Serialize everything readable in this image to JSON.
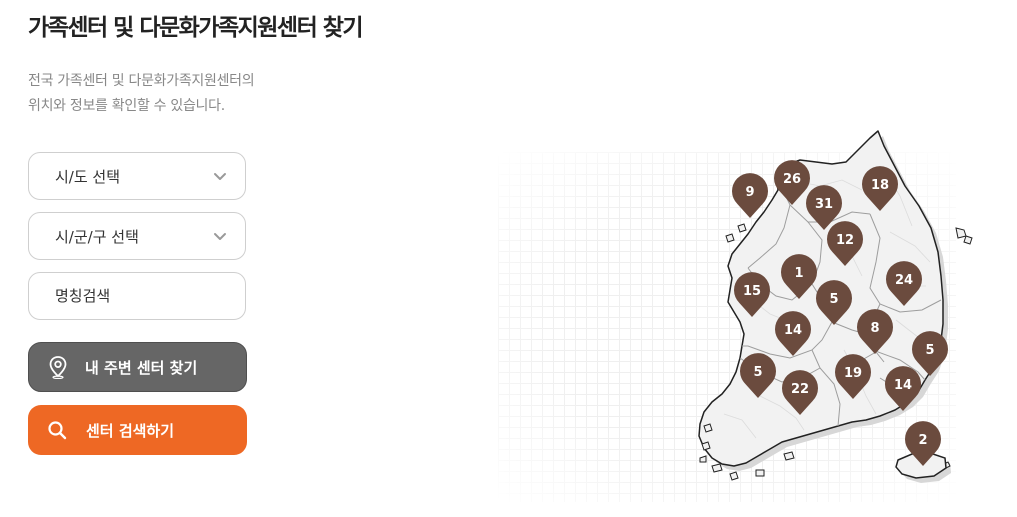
{
  "page": {
    "title": "가족센터 및 다문화가족지원센터 찾기",
    "description_line1": "전국 가족센터 및 다문화가족지원센터의",
    "description_line2": "위치와 정보를 확인할 수 있습니다."
  },
  "filters": {
    "sido_label": "시/도 선택",
    "sigungu_label": "시/군/구 선택",
    "name_placeholder": "명칭검색"
  },
  "buttons": {
    "nearby_label": "내 주변 센터 찾기",
    "search_label": "센터 검색하기"
  },
  "colors": {
    "accent": "#ee6824",
    "nearby_button": "#666666",
    "marker": "#6b4b3e",
    "map_fill": "#f2f2f2",
    "map_stroke": "#222222"
  },
  "map": {
    "markers": [
      {
        "region": "incheon",
        "count": "9"
      },
      {
        "region": "seoul",
        "count": "26"
      },
      {
        "region": "gyeonggi",
        "count": "31"
      },
      {
        "region": "gangwon",
        "count": "18"
      },
      {
        "region": "chungbuk",
        "count": "12"
      },
      {
        "region": "sejong",
        "count": "1"
      },
      {
        "region": "chungnam",
        "count": "15"
      },
      {
        "region": "daejeon",
        "count": "5"
      },
      {
        "region": "gyeongbuk",
        "count": "24"
      },
      {
        "region": "jeonbuk",
        "count": "14"
      },
      {
        "region": "daegu",
        "count": "8"
      },
      {
        "region": "ulsan",
        "count": "5"
      },
      {
        "region": "gwangju",
        "count": "5"
      },
      {
        "region": "gyeongnam",
        "count": "19"
      },
      {
        "region": "jeonnam",
        "count": "22"
      },
      {
        "region": "busan",
        "count": "14"
      },
      {
        "region": "jeju",
        "count": "2"
      }
    ]
  }
}
